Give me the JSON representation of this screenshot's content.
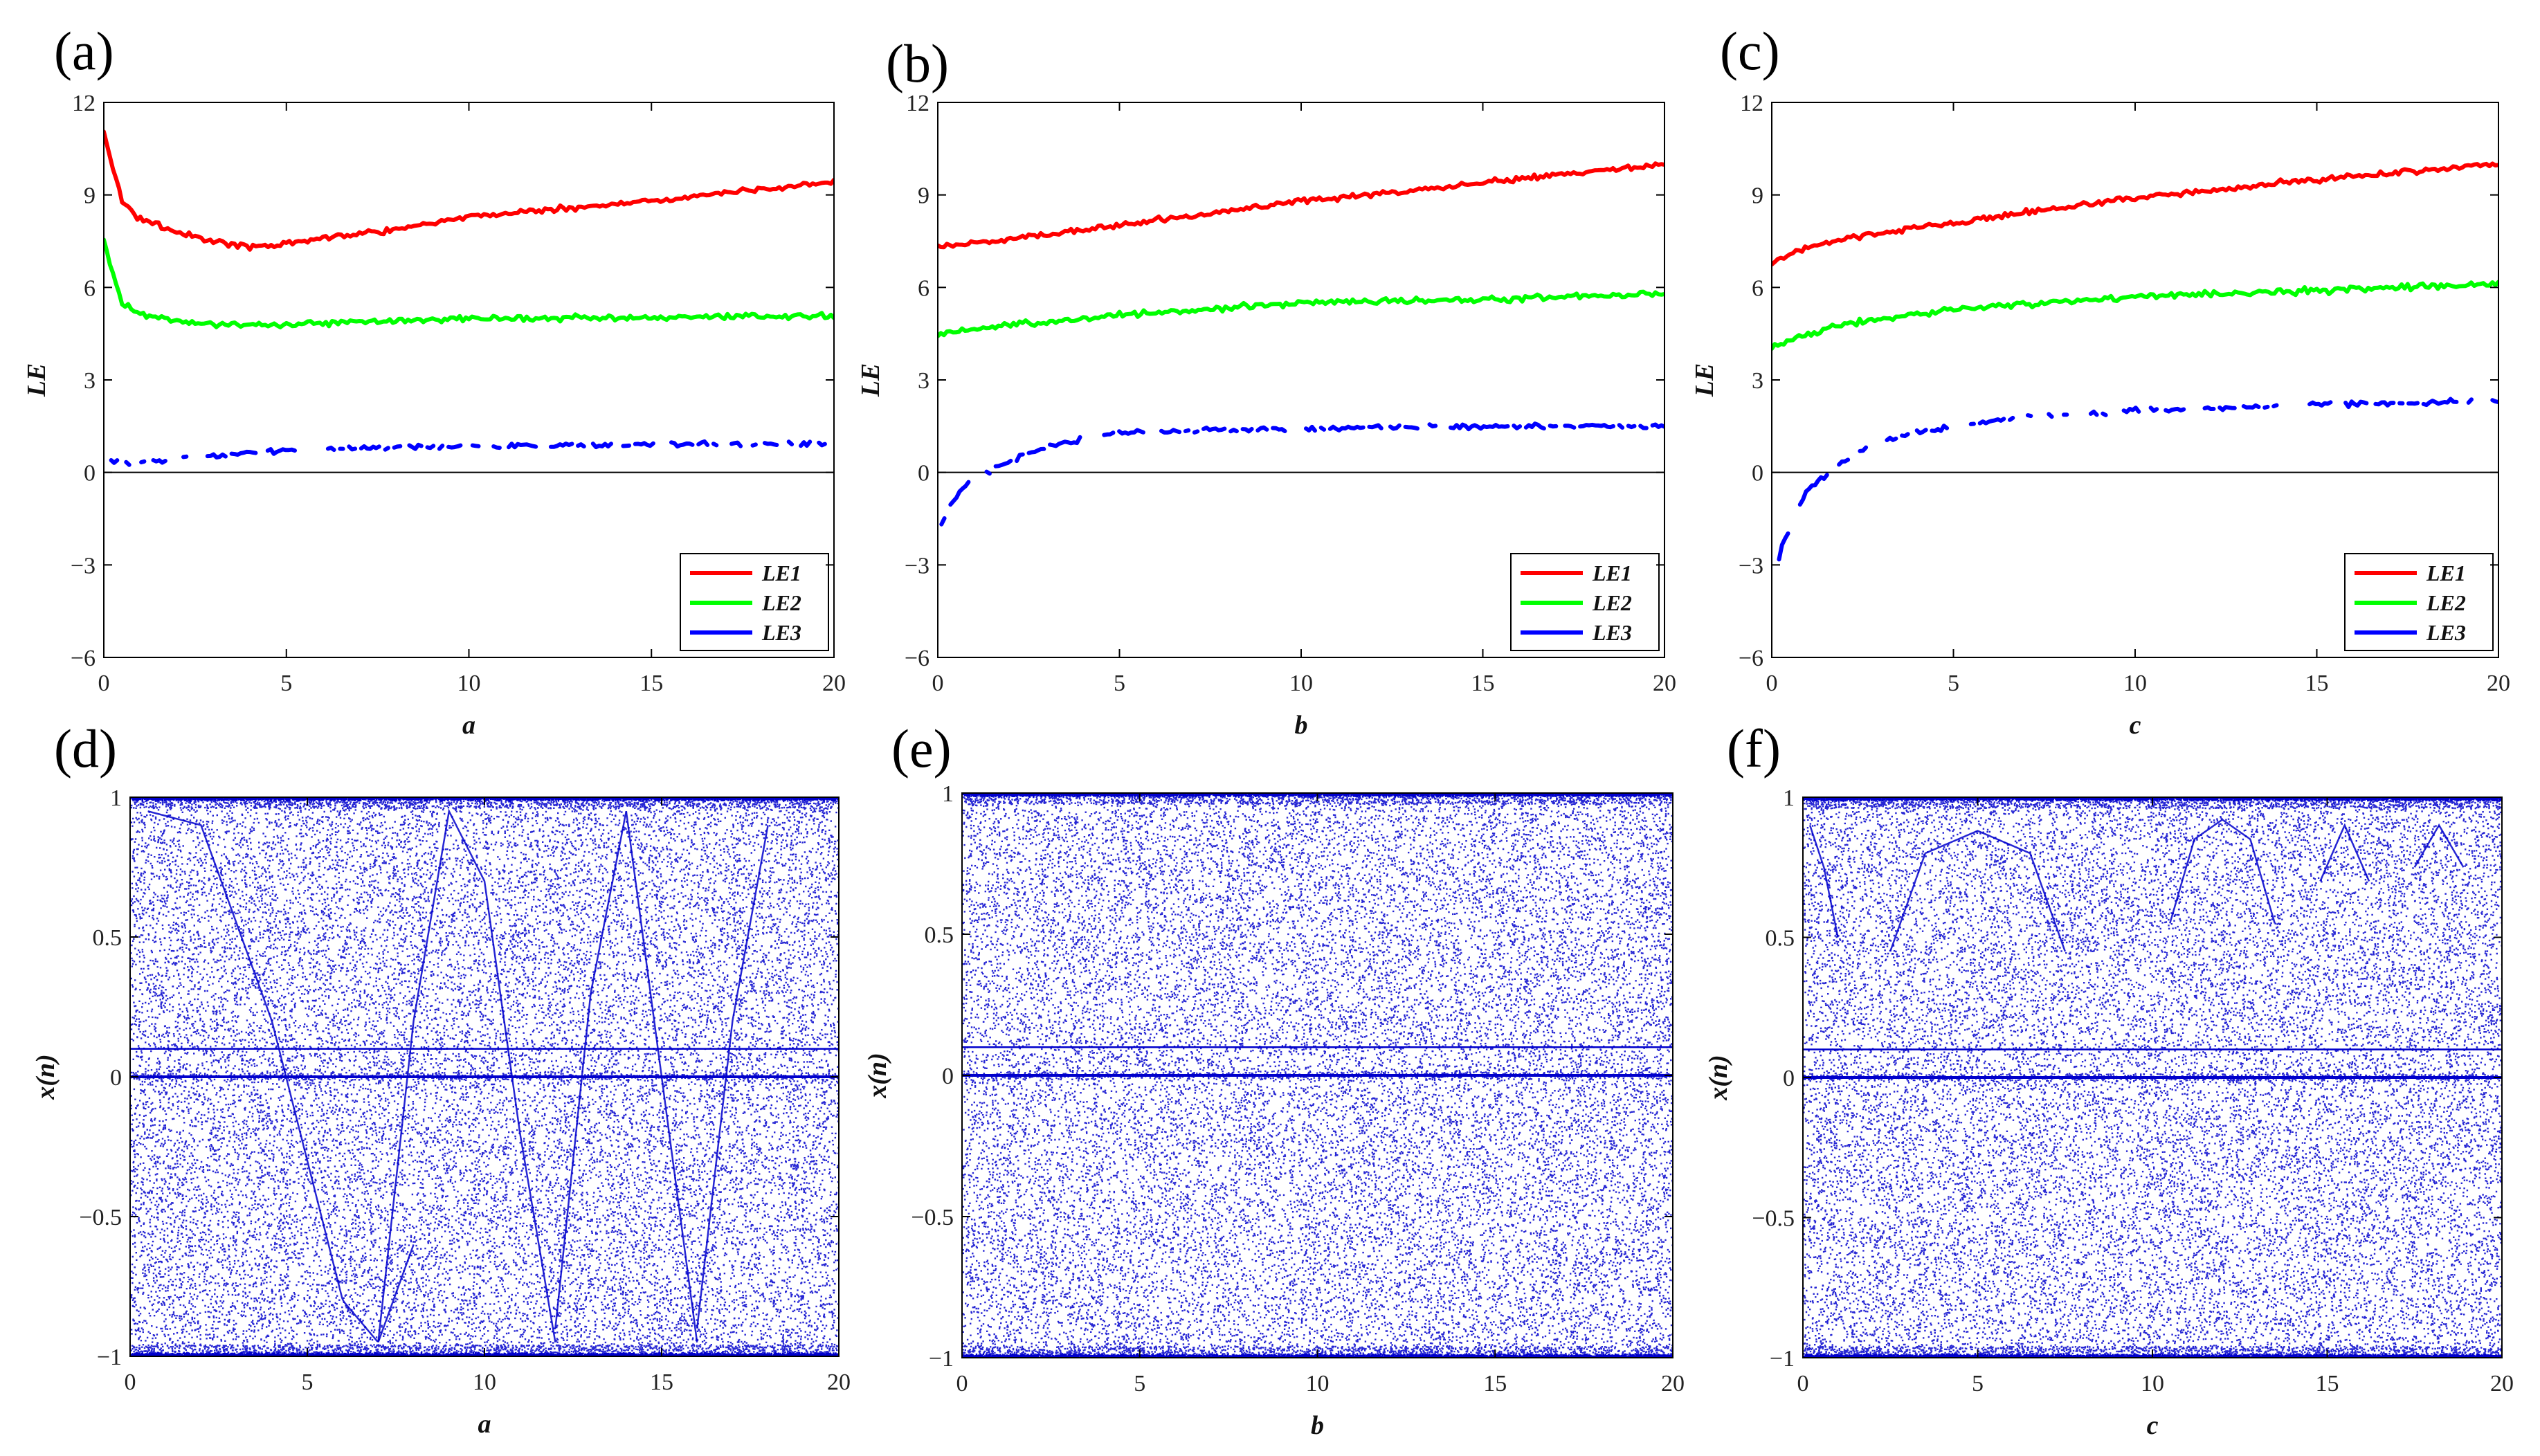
{
  "chart_data": [
    {
      "id": "a",
      "panel_label": "(a)",
      "type": "line",
      "xlabel": "a",
      "ylabel": "LE",
      "xlim": [
        0,
        20
      ],
      "ylim": [
        -6,
        12
      ],
      "xticks": [
        "0",
        "5",
        "10",
        "15",
        "20"
      ],
      "yticks": [
        "-6",
        "-3",
        "0",
        "3",
        "6",
        "9",
        "12"
      ],
      "zero_line": true,
      "legend_position": "bottom-right",
      "colors": {
        "LE1": "#ff0000",
        "LE2": "#00ff00",
        "LE3": "#0000ff"
      },
      "series": [
        {
          "name": "LE1",
          "x": [
            0,
            0.5,
            1,
            2,
            3,
            4,
            5,
            6,
            8,
            10,
            12,
            15,
            18,
            20
          ],
          "y": [
            11,
            8.8,
            8.2,
            7.8,
            7.5,
            7.3,
            7.4,
            7.6,
            7.9,
            8.3,
            8.5,
            8.8,
            9.2,
            9.4
          ]
        },
        {
          "name": "LE2",
          "x": [
            0,
            0.5,
            1,
            2,
            3,
            5,
            10,
            15,
            20
          ],
          "y": [
            7.5,
            5.5,
            5.1,
            4.9,
            4.8,
            4.8,
            5.0,
            5.0,
            5.1
          ]
        },
        {
          "name": "LE3",
          "x": [
            0.2,
            0.6,
            1.5,
            3,
            5,
            7,
            10,
            15,
            20
          ],
          "y": [
            0.4,
            0.3,
            0.4,
            0.55,
            0.7,
            0.8,
            0.85,
            0.9,
            0.95
          ]
        }
      ]
    },
    {
      "id": "b",
      "panel_label": "(b)",
      "type": "line",
      "xlabel": "b",
      "ylabel": "LE",
      "xlim": [
        0,
        20
      ],
      "ylim": [
        -6,
        12
      ],
      "xticks": [
        "0",
        "5",
        "10",
        "15",
        "20"
      ],
      "yticks": [
        "-6",
        "-3",
        "0",
        "3",
        "6",
        "9",
        "12"
      ],
      "zero_line": true,
      "legend_position": "bottom-right",
      "colors": {
        "LE1": "#ff0000",
        "LE2": "#00ff00",
        "LE3": "#0000ff"
      },
      "series": [
        {
          "name": "LE1",
          "x": [
            0,
            2,
            5,
            10,
            15,
            20
          ],
          "y": [
            7.3,
            7.6,
            8.0,
            8.8,
            9.4,
            10.0
          ]
        },
        {
          "name": "LE2",
          "x": [
            0,
            2,
            5,
            10,
            15,
            20
          ],
          "y": [
            4.5,
            4.8,
            5.1,
            5.5,
            5.6,
            5.8
          ]
        },
        {
          "name": "LE3",
          "x": [
            0.1,
            0.3,
            0.6,
            1,
            1.5,
            2,
            3,
            4,
            5,
            8,
            12,
            16,
            20
          ],
          "y": [
            -1.7,
            -1.2,
            -0.6,
            -0.2,
            0.1,
            0.4,
            0.8,
            1.1,
            1.3,
            1.4,
            1.45,
            1.5,
            1.5
          ]
        }
      ]
    },
    {
      "id": "c",
      "panel_label": "(c)",
      "type": "line",
      "xlabel": "c",
      "ylabel": "LE",
      "xlim": [
        0,
        20
      ],
      "ylim": [
        -6,
        12
      ],
      "xticks": [
        "0",
        "5",
        "10",
        "15",
        "20"
      ],
      "yticks": [
        "-6",
        "-3",
        "0",
        "3",
        "6",
        "9",
        "12"
      ],
      "zero_line": true,
      "legend_position": "bottom-right",
      "colors": {
        "LE1": "#ff0000",
        "LE2": "#00ff00",
        "LE3": "#0000ff"
      },
      "series": [
        {
          "name": "LE1",
          "x": [
            0,
            1,
            2,
            5,
            10,
            15,
            20
          ],
          "y": [
            6.8,
            7.3,
            7.6,
            8.1,
            8.9,
            9.5,
            10.0
          ]
        },
        {
          "name": "LE2",
          "x": [
            0,
            1,
            2,
            5,
            10,
            15,
            20
          ],
          "y": [
            4.1,
            4.5,
            4.8,
            5.3,
            5.7,
            5.9,
            6.1
          ]
        },
        {
          "name": "LE3",
          "x": [
            0.2,
            0.3,
            1,
            1.5,
            2,
            2.5,
            3,
            4,
            5,
            7,
            10,
            15,
            20
          ],
          "y": [
            -2.8,
            -2.3,
            -0.5,
            -0.1,
            0.4,
            0.7,
            1.0,
            1.3,
            1.5,
            1.8,
            2.0,
            2.2,
            2.3
          ]
        }
      ]
    },
    {
      "id": "d",
      "panel_label": "(d)",
      "type": "scatter",
      "xlabel": "a",
      "ylabel": "x(n)",
      "xlim": [
        0,
        20
      ],
      "ylim": [
        -1,
        1
      ],
      "xticks": [
        "0",
        "5",
        "10",
        "15",
        "20"
      ],
      "yticks": [
        "-1",
        "-0.5",
        "0",
        "0.5",
        "1"
      ],
      "point_color": "#0000cc",
      "horizontal_lines": [
        0.1,
        0
      ],
      "curves": [
        {
          "x": [
            0.5,
            2,
            4,
            5,
            6,
            7,
            8
          ],
          "y": [
            0.95,
            0.9,
            0.2,
            -0.3,
            -0.8,
            -0.95,
            -0.6
          ]
        },
        {
          "x": [
            7,
            8,
            9,
            10,
            11,
            12
          ],
          "y": [
            -0.95,
            0.2,
            0.95,
            0.7,
            -0.2,
            -0.95
          ]
        },
        {
          "x": [
            12,
            13,
            14
          ],
          "y": [
            -0.9,
            0.3,
            0.95
          ]
        },
        {
          "x": [
            14,
            15,
            16
          ],
          "y": [
            0.95,
            0.0,
            -0.95
          ]
        },
        {
          "x": [
            16,
            17,
            18
          ],
          "y": [
            -0.9,
            0.2,
            0.9
          ]
        }
      ]
    },
    {
      "id": "e",
      "panel_label": "(e)",
      "type": "scatter",
      "xlabel": "b",
      "ylabel": "x(n)",
      "xlim": [
        0,
        20
      ],
      "ylim": [
        -1,
        1
      ],
      "xticks": [
        "0",
        "5",
        "10",
        "15",
        "20"
      ],
      "yticks": [
        "-1",
        "-0.5",
        "0",
        "0.5",
        "1"
      ],
      "point_color": "#0000cc",
      "horizontal_lines": [
        0.1,
        0
      ],
      "curves": []
    },
    {
      "id": "f",
      "panel_label": "(f)",
      "type": "scatter",
      "xlabel": "c",
      "ylabel": "x(n)",
      "xlim": [
        0,
        20
      ],
      "ylim": [
        -1,
        1
      ],
      "xticks": [
        "0",
        "5",
        "10",
        "15",
        "20"
      ],
      "yticks": [
        "-1",
        "-0.5",
        "0",
        "0.5",
        "1"
      ],
      "point_color": "#0000cc",
      "horizontal_lines": [
        0.1,
        0
      ],
      "curves": [
        {
          "x": [
            2.5,
            3.5,
            5,
            6.5,
            7.5
          ],
          "y": [
            0.45,
            0.8,
            0.88,
            0.8,
            0.45
          ]
        },
        {
          "x": [
            10.5,
            11.2,
            12,
            12.8,
            13.5
          ],
          "y": [
            0.55,
            0.85,
            0.92,
            0.85,
            0.55
          ]
        },
        {
          "x": [
            14.8,
            15.5,
            16.2
          ],
          "y": [
            0.7,
            0.9,
            0.7
          ]
        },
        {
          "x": [
            17.5,
            18.2,
            18.9
          ],
          "y": [
            0.75,
            0.9,
            0.75
          ]
        },
        {
          "x": [
            0.2,
            0.6,
            1.0
          ],
          "y": [
            0.9,
            0.75,
            0.5
          ]
        }
      ]
    }
  ]
}
